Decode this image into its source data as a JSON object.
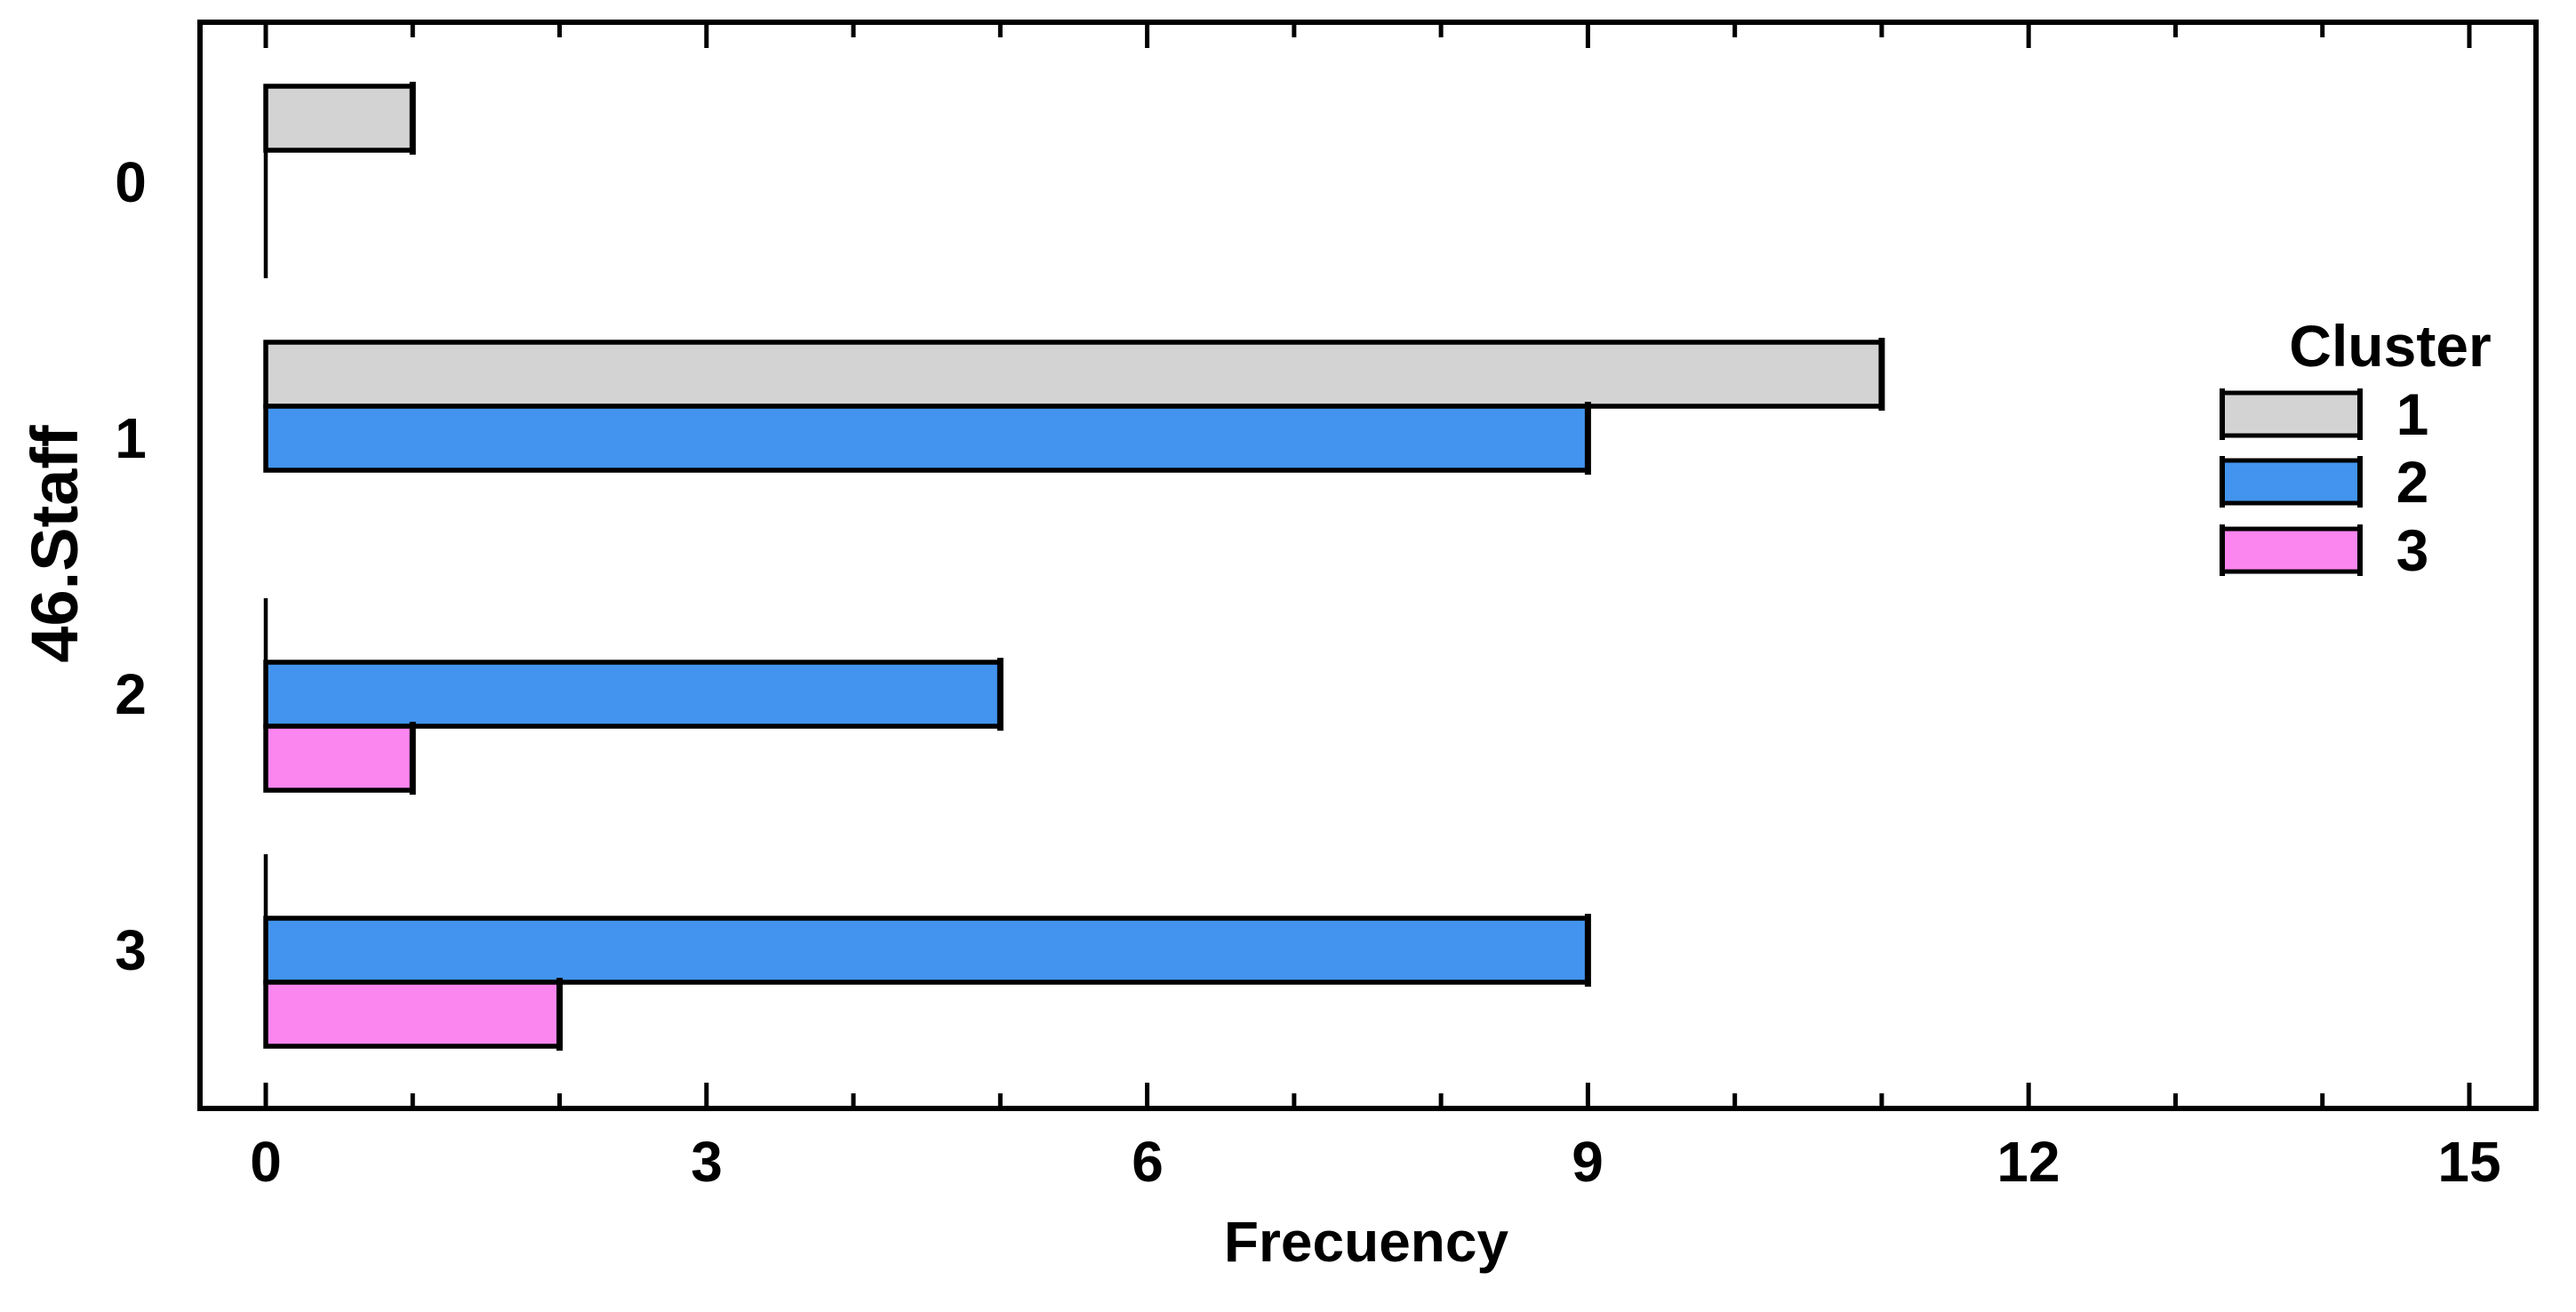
{
  "chart_data": {
    "type": "bar",
    "orientation": "horizontal",
    "xlabel": "Frecuency",
    "ylabel": "46.Staff",
    "categories": [
      "0",
      "1",
      "2",
      "3"
    ],
    "series": [
      {
        "name": "1",
        "color": "#d3d3d3",
        "values": [
          1,
          11,
          0,
          0
        ]
      },
      {
        "name": "2",
        "color": "#4294ee",
        "values": [
          0,
          9,
          5,
          9
        ]
      },
      {
        "name": "3",
        "color": "#fc86ef",
        "values": [
          0,
          null,
          1,
          2
        ]
      }
    ],
    "xlim": [
      0,
      15.45
    ],
    "x_major_ticks": [
      0,
      3,
      6,
      9,
      12,
      15
    ],
    "x_tick_labels": [
      "0",
      "3",
      "6",
      "9",
      "12",
      "15"
    ],
    "x_minor_tick_step": 1,
    "grid": false,
    "legend_title": "Cluster",
    "legend_position": "inside-right",
    "bar_outline_color": "#000000",
    "axis_color": "#000000",
    "background_color": "#ffffff"
  }
}
